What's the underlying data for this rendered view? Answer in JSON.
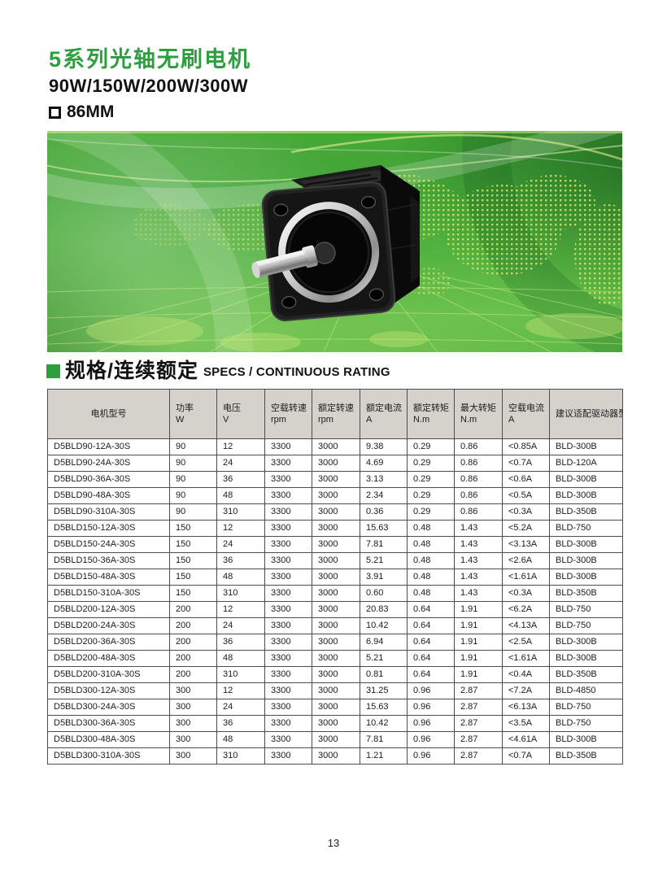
{
  "header": {
    "title": "5系列光轴无刷电机",
    "subtitle": "90W/150W/200W/300W",
    "frame_size": "86MM"
  },
  "section": {
    "title_cn": "规格/连续额定",
    "title_en": "SPECS / CONTINUOUS RATING"
  },
  "icons": {
    "section_bullet": "green-filled-square",
    "frame_size_box": "square-outline"
  },
  "colors": {
    "accent_green": "#2f9e41",
    "header_bg": "#d5d1cb",
    "table_border": "#4d4d4d",
    "banner_green": "#4bae3c"
  },
  "table": {
    "headers": [
      {
        "label": "电机型号",
        "unit": ""
      },
      {
        "label": "功率",
        "unit": "W"
      },
      {
        "label": "电压",
        "unit": "V"
      },
      {
        "label": "空载转速",
        "unit": "rpm"
      },
      {
        "label": "额定转速",
        "unit": "rpm"
      },
      {
        "label": "额定电流",
        "unit": "A"
      },
      {
        "label": "额定转矩",
        "unit": "N.m"
      },
      {
        "label": "最大转矩",
        "unit": "N.m"
      },
      {
        "label": "空载电流",
        "unit": "A"
      },
      {
        "label": "建议适配驱动器型号",
        "unit": ""
      }
    ],
    "rows": [
      [
        "D5BLD90-12A-30S",
        "90",
        "12",
        "3300",
        "3000",
        "9.38",
        "0.29",
        "0.86",
        "<0.85A",
        "BLD-300B"
      ],
      [
        "D5BLD90-24A-30S",
        "90",
        "24",
        "3300",
        "3000",
        "4.69",
        "0.29",
        "0.86",
        "<0.7A",
        "BLD-120A"
      ],
      [
        "D5BLD90-36A-30S",
        "90",
        "36",
        "3300",
        "3000",
        "3.13",
        "0.29",
        "0.86",
        "<0.6A",
        "BLD-300B"
      ],
      [
        "D5BLD90-48A-30S",
        "90",
        "48",
        "3300",
        "3000",
        "2.34",
        "0.29",
        "0.86",
        "<0.5A",
        "BLD-300B"
      ],
      [
        "D5BLD90-310A-30S",
        "90",
        "310",
        "3300",
        "3000",
        "0.36",
        "0.29",
        "0.86",
        "<0.3A",
        "BLD-350B"
      ],
      [
        "D5BLD150-12A-30S",
        "150",
        "12",
        "3300",
        "3000",
        "15.63",
        "0.48",
        "1.43",
        "<5.2A",
        "BLD-750"
      ],
      [
        "D5BLD150-24A-30S",
        "150",
        "24",
        "3300",
        "3000",
        "7.81",
        "0.48",
        "1.43",
        "<3.13A",
        "BLD-300B"
      ],
      [
        "D5BLD150-36A-30S",
        "150",
        "36",
        "3300",
        "3000",
        "5.21",
        "0.48",
        "1.43",
        "<2.6A",
        "BLD-300B"
      ],
      [
        "D5BLD150-48A-30S",
        "150",
        "48",
        "3300",
        "3000",
        "3.91",
        "0.48",
        "1.43",
        "<1.61A",
        "BLD-300B"
      ],
      [
        "D5BLD150-310A-30S",
        "150",
        "310",
        "3300",
        "3000",
        "0.60",
        "0.48",
        "1.43",
        "<0.3A",
        "BLD-350B"
      ],
      [
        "D5BLD200-12A-30S",
        "200",
        "12",
        "3300",
        "3000",
        "20.83",
        "0.64",
        "1.91",
        "<6.2A",
        "BLD-750"
      ],
      [
        "D5BLD200-24A-30S",
        "200",
        "24",
        "3300",
        "3000",
        "10.42",
        "0.64",
        "1.91",
        "<4.13A",
        "BLD-750"
      ],
      [
        "D5BLD200-36A-30S",
        "200",
        "36",
        "3300",
        "3000",
        "6.94",
        "0.64",
        "1.91",
        "<2.5A",
        "BLD-300B"
      ],
      [
        "D5BLD200-48A-30S",
        "200",
        "48",
        "3300",
        "3000",
        "5.21",
        "0.64",
        "1.91",
        "<1.61A",
        "BLD-300B"
      ],
      [
        "D5BLD200-310A-30S",
        "200",
        "310",
        "3300",
        "3000",
        "0.81",
        "0.64",
        "1.91",
        "<0.4A",
        "BLD-350B"
      ],
      [
        "D5BLD300-12A-30S",
        "300",
        "12",
        "3300",
        "3000",
        "31.25",
        "0.96",
        "2.87",
        "<7.2A",
        "BLD-4850"
      ],
      [
        "D5BLD300-24A-30S",
        "300",
        "24",
        "3300",
        "3000",
        "15.63",
        "0.96",
        "2.87",
        "<6.13A",
        "BLD-750"
      ],
      [
        "D5BLD300-36A-30S",
        "300",
        "36",
        "3300",
        "3000",
        "10.42",
        "0.96",
        "2.87",
        "<3.5A",
        "BLD-750"
      ],
      [
        "D5BLD300-48A-30S",
        "300",
        "48",
        "3300",
        "3000",
        "7.81",
        "0.96",
        "2.87",
        "<4.61A",
        "BLD-300B"
      ],
      [
        "D5BLD300-310A-30S",
        "300",
        "310",
        "3300",
        "3000",
        "1.21",
        "0.96",
        "2.87",
        "<0.7A",
        "BLD-350B"
      ]
    ]
  },
  "footer": {
    "page_number": "13"
  }
}
